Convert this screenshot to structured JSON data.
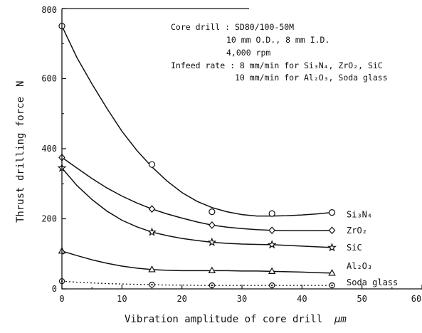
{
  "chart_data": {
    "type": "line",
    "xlabel": "Vibration amplitude of core drill",
    "xunit": "μm",
    "ylabel": "Thrust drilling force",
    "yunit": "N",
    "xlim": [
      0,
      60
    ],
    "ylim": [
      0,
      800
    ],
    "xticks": [
      "0",
      "10",
      "20",
      "30",
      "40",
      "50",
      "60"
    ],
    "yticks": [
      "0",
      "200",
      "400",
      "600",
      "800"
    ],
    "grid": false,
    "annotation": {
      "line1": "Core drill : SD80/100-50M",
      "line2": "10  mm  O.D.,  8  mm  I.D.",
      "line3": "4,000  rpm",
      "line4_prefix": "Infeed rate : 8 mm/min for ",
      "line4_materials": "Si₃N₄,  ZrO₂,  SiC",
      "line5_prefix": "10 mm/min for ",
      "line5_materials": "Al₂O₃,  Soda glass"
    },
    "series": [
      {
        "name": "Si₃N₄",
        "marker": "circle",
        "line": "solid",
        "x": [
          0,
          15,
          25,
          35,
          45
        ],
        "y": [
          750,
          355,
          220,
          215,
          218
        ],
        "curve_x": [
          0,
          2.5,
          5,
          7.5,
          10,
          12.5,
          15,
          17.5,
          20,
          22.5,
          25,
          27.5,
          30,
          32.5,
          35,
          37.5,
          40,
          42.5,
          45
        ],
        "curve_y": [
          750,
          660,
          585,
          515,
          450,
          395,
          348,
          308,
          275,
          250,
          232,
          220,
          212,
          208,
          208,
          209,
          211,
          214,
          218
        ]
      },
      {
        "name": "ZrO₂",
        "marker": "diamond",
        "line": "solid",
        "x": [
          0,
          15,
          25,
          35,
          45
        ],
        "y": [
          375,
          228,
          182,
          167,
          167
        ],
        "curve_x": [
          0,
          2.5,
          5,
          7.5,
          10,
          12.5,
          15,
          17.5,
          20,
          22.5,
          25,
          27.5,
          30,
          32.5,
          35,
          37.5,
          40,
          42.5,
          45
        ],
        "curve_y": [
          375,
          345,
          315,
          288,
          265,
          245,
          228,
          214,
          202,
          191,
          182,
          176,
          172,
          169,
          167,
          166,
          166,
          166,
          167
        ]
      },
      {
        "name": "SiC",
        "marker": "star",
        "line": "solid",
        "x": [
          0,
          15,
          25,
          35,
          45
        ],
        "y": [
          345,
          162,
          133,
          126,
          118
        ],
        "curve_x": [
          0,
          2.5,
          5,
          7.5,
          10,
          12.5,
          15,
          17.5,
          20,
          22.5,
          25,
          27.5,
          30,
          32.5,
          35,
          37.5,
          40,
          42.5,
          45
        ],
        "curve_y": [
          345,
          295,
          255,
          222,
          196,
          177,
          162,
          152,
          144,
          138,
          133,
          130,
          128,
          127,
          126,
          124,
          122,
          120,
          118
        ]
      },
      {
        "name": "Al₂O₃",
        "marker": "triangle",
        "line": "solid",
        "x": [
          0,
          15,
          25,
          35,
          45
        ],
        "y": [
          108,
          55,
          52,
          50,
          45
        ],
        "curve_x": [
          0,
          2.5,
          5,
          7.5,
          10,
          12.5,
          15,
          17.5,
          20,
          22.5,
          25,
          27.5,
          30,
          32.5,
          35,
          37.5,
          40,
          42.5,
          45
        ],
        "curve_y": [
          108,
          95,
          83,
          73,
          65,
          59,
          55,
          53,
          52,
          52,
          52,
          52,
          51,
          51,
          50,
          49,
          48,
          46,
          45
        ]
      },
      {
        "name": "Soda glass",
        "marker": "circle-dot",
        "line": "dotted",
        "x": [
          0,
          15,
          25,
          35,
          45
        ],
        "y": [
          22,
          12,
          10,
          10,
          10
        ],
        "curve_x": [
          0,
          2.5,
          5,
          7.5,
          10,
          12.5,
          15,
          17.5,
          20,
          22.5,
          25,
          27.5,
          30,
          32.5,
          35,
          37.5,
          40,
          42.5,
          45
        ],
        "curve_y": [
          22,
          19,
          17,
          15,
          14,
          13,
          12,
          11,
          11,
          10,
          10,
          10,
          10,
          10,
          10,
          10,
          10,
          10,
          10
        ]
      }
    ]
  }
}
